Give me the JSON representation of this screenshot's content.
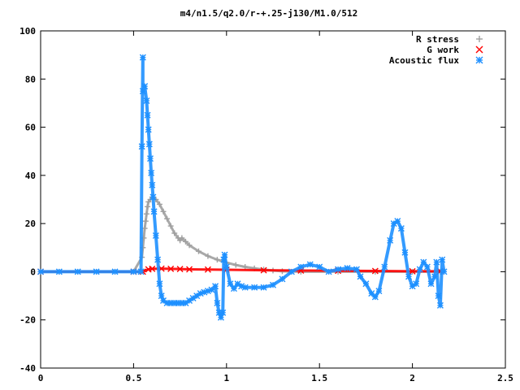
{
  "chart_data": {
    "type": "scatter",
    "title": "m4/n1.5/q2.0/r-+.25-j130/M1.0/512",
    "xlabel": "",
    "ylabel": "",
    "xlim": [
      0,
      2.5
    ],
    "ylim": [
      -40,
      100
    ],
    "xticks": [
      0,
      0.5,
      1,
      1.5,
      2,
      2.5
    ],
    "xtick_labels": [
      "0",
      "0.5",
      "1",
      "1.5",
      "2",
      "2.5"
    ],
    "yticks": [
      -40,
      -20,
      0,
      20,
      40,
      60,
      80,
      100
    ],
    "ytick_labels": [
      "-40",
      "-20",
      "0",
      "20",
      "40",
      "60",
      "80",
      "100"
    ],
    "grid": false,
    "legend_position": "top-right",
    "series": [
      {
        "name": "R stress",
        "marker": "plus",
        "color": "#a0a0a0",
        "points": [
          [
            0,
            0
          ],
          [
            0.1,
            0
          ],
          [
            0.2,
            0
          ],
          [
            0.3,
            0
          ],
          [
            0.4,
            0
          ],
          [
            0.5,
            0
          ],
          [
            0.545,
            6
          ],
          [
            0.55,
            10
          ],
          [
            0.555,
            14
          ],
          [
            0.56,
            18
          ],
          [
            0.565,
            21
          ],
          [
            0.57,
            24
          ],
          [
            0.575,
            27
          ],
          [
            0.58,
            29
          ],
          [
            0.59,
            30
          ],
          [
            0.6,
            31
          ],
          [
            0.62,
            30
          ],
          [
            0.64,
            28
          ],
          [
            0.66,
            25
          ],
          [
            0.68,
            22
          ],
          [
            0.7,
            19
          ],
          [
            0.72,
            16
          ],
          [
            0.74,
            14
          ],
          [
            0.75,
            13
          ],
          [
            0.76,
            14
          ],
          [
            0.78,
            12.5
          ],
          [
            0.8,
            11
          ],
          [
            0.85,
            8.5
          ],
          [
            0.9,
            6.5
          ],
          [
            0.95,
            5
          ],
          [
            1.0,
            3.8
          ],
          [
            1.05,
            2.8
          ],
          [
            1.1,
            2
          ],
          [
            1.15,
            1.4
          ],
          [
            1.2,
            0.9
          ],
          [
            1.25,
            0.5
          ],
          [
            1.3,
            0.2
          ],
          [
            1.4,
            0
          ],
          [
            1.6,
            0
          ],
          [
            1.8,
            0
          ],
          [
            2.0,
            0
          ],
          [
            2.15,
            0
          ]
        ]
      },
      {
        "name": "G work",
        "marker": "cross",
        "color": "#ff0000",
        "points": [
          [
            0,
            0
          ],
          [
            0.5,
            0
          ],
          [
            0.55,
            0
          ],
          [
            0.58,
            1
          ],
          [
            0.6,
            1.2
          ],
          [
            0.65,
            1.3
          ],
          [
            0.7,
            1.2
          ],
          [
            0.75,
            1.1
          ],
          [
            0.8,
            1
          ],
          [
            0.9,
            0.9
          ],
          [
            1.0,
            0.8
          ],
          [
            1.2,
            0.6
          ],
          [
            1.4,
            0.5
          ],
          [
            1.6,
            0.4
          ],
          [
            1.8,
            0.3
          ],
          [
            2.0,
            0.2
          ],
          [
            2.15,
            0.2
          ]
        ]
      },
      {
        "name": "Acoustic flux",
        "marker": "star",
        "color": "#1e90ff",
        "points": [
          [
            0,
            0
          ],
          [
            0.1,
            0
          ],
          [
            0.2,
            0
          ],
          [
            0.3,
            0
          ],
          [
            0.4,
            0
          ],
          [
            0.5,
            0
          ],
          [
            0.54,
            0
          ],
          [
            0.55,
            89
          ],
          [
            0.56,
            77
          ],
          [
            0.57,
            71
          ],
          [
            0.575,
            65
          ],
          [
            0.58,
            59
          ],
          [
            0.585,
            53
          ],
          [
            0.59,
            47
          ],
          [
            0.595,
            41
          ],
          [
            0.6,
            36
          ],
          [
            0.605,
            31
          ],
          [
            0.545,
            52
          ],
          [
            0.55,
            75
          ],
          [
            0.61,
            25
          ],
          [
            0.62,
            15
          ],
          [
            0.63,
            5
          ],
          [
            0.64,
            -5
          ],
          [
            0.65,
            -10
          ],
          [
            0.66,
            -12
          ],
          [
            0.68,
            -13
          ],
          [
            0.7,
            -13
          ],
          [
            0.72,
            -13
          ],
          [
            0.74,
            -13
          ],
          [
            0.76,
            -13
          ],
          [
            0.78,
            -13
          ],
          [
            0.8,
            -12
          ],
          [
            0.82,
            -11
          ],
          [
            0.84,
            -10
          ],
          [
            0.86,
            -9
          ],
          [
            0.88,
            -8.5
          ],
          [
            0.9,
            -8
          ],
          [
            0.92,
            -7.5
          ],
          [
            0.94,
            -6
          ],
          [
            0.95,
            -13
          ],
          [
            0.96,
            -17
          ],
          [
            0.97,
            -19
          ],
          [
            0.98,
            -17
          ],
          [
            0.985,
            5
          ],
          [
            0.99,
            7
          ],
          [
            1.0,
            2
          ],
          [
            1.02,
            -5
          ],
          [
            1.04,
            -7
          ],
          [
            1.06,
            -5
          ],
          [
            1.08,
            -6
          ],
          [
            1.1,
            -6.5
          ],
          [
            1.15,
            -6.5
          ],
          [
            1.2,
            -6.5
          ],
          [
            1.25,
            -5.5
          ],
          [
            1.3,
            -3
          ],
          [
            1.35,
            0
          ],
          [
            1.4,
            2
          ],
          [
            1.45,
            3
          ],
          [
            1.5,
            2
          ],
          [
            1.55,
            0
          ],
          [
            1.6,
            1
          ],
          [
            1.65,
            1.5
          ],
          [
            1.7,
            1
          ],
          [
            1.72,
            -2
          ],
          [
            1.75,
            -5
          ],
          [
            1.78,
            -9
          ],
          [
            1.8,
            -10.5
          ],
          [
            1.82,
            -8
          ],
          [
            1.85,
            2
          ],
          [
            1.88,
            13
          ],
          [
            1.9,
            20
          ],
          [
            1.92,
            21
          ],
          [
            1.94,
            18
          ],
          [
            1.96,
            8
          ],
          [
            1.98,
            -2
          ],
          [
            2.0,
            -6
          ],
          [
            2.02,
            -5
          ],
          [
            2.04,
            1
          ],
          [
            2.06,
            4
          ],
          [
            2.08,
            2
          ],
          [
            2.1,
            -5
          ],
          [
            2.12,
            -2
          ],
          [
            2.13,
            4
          ],
          [
            2.14,
            -10
          ],
          [
            2.15,
            -14
          ],
          [
            2.16,
            5
          ],
          [
            2.17,
            0
          ]
        ]
      }
    ]
  }
}
